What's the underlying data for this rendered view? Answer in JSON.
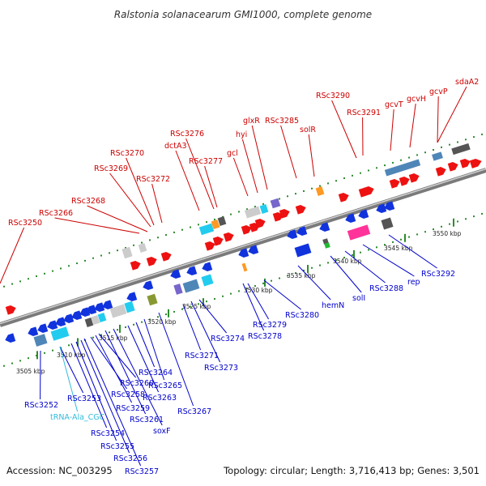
{
  "title": "Ralstonia solanacearum GMI1000, complete genome",
  "footer": {
    "accession": "Accession: NC_003295",
    "topology": "Topology: circular; Length: 3,716,413 bp; Genes: 3,501"
  },
  "colors": {
    "plus_label": "#cc0000",
    "minus_label": "#0000cc",
    "rna_label": "#33bbdd",
    "backbone": "#888888",
    "dots": "#2e8b2e"
  },
  "scale_labels": [
    "3505 kbp",
    "3510 kbp",
    "3515 kbp",
    "3520 kbp",
    "3525 kbp",
    "3530 kbp",
    "3535 kbp",
    "3540 kbp",
    "3545 kbp",
    "3550 kbp"
  ],
  "plus_genes": [
    "RSc3250",
    "RSc3266",
    "RSc3268",
    "RSc3269",
    "RSc3270",
    "RSc3272",
    "RSc3276",
    "dctA3",
    "RSc3277",
    "gcl",
    "hyi",
    "glxR",
    "RSc3285",
    "solR",
    "RSc3290",
    "RSc3291",
    "gcvT",
    "gcvH",
    "gcvP",
    "sdaA2"
  ],
  "minus_genes": [
    "RSc3252",
    "RSc3253",
    "tRNA-Ala_CGC",
    "RSc3254",
    "RSc3255",
    "RSc3256",
    "RSc3257",
    "RSc3258",
    "RSc3259",
    "RSc3260",
    "RSc3261",
    "soxF",
    "RSc3263",
    "RSc3264",
    "RSc3265",
    "RSc3267",
    "RSc3271",
    "RSc3273",
    "RSc3274",
    "RSc3278",
    "RSc3279",
    "RSc3280",
    "hemN",
    "solI",
    "RSc3288",
    "rep",
    "RSc3292"
  ]
}
